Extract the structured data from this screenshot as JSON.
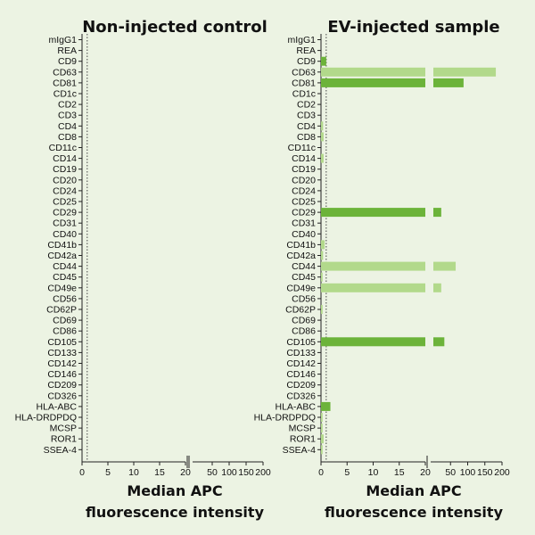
{
  "chart_data": [
    {
      "type": "bar",
      "orientation": "horizontal",
      "title": "Non-injected control",
      "xlabel": [
        "Median APC",
        "fluorescence intensity"
      ],
      "x_axis": {
        "broken": true,
        "segments": [
          {
            "range": [
              0,
              20
            ],
            "ticks": [
              "0",
              "5",
              "10",
              "15",
              "20"
            ]
          },
          {
            "range": [
              20,
              200
            ],
            "ticks": [
              "50",
              "100",
              "150",
              "200"
            ]
          }
        ],
        "reference_line": 1
      },
      "categories": [
        "mIgG1",
        "REA",
        "CD9",
        "CD63",
        "CD81",
        "CD1c",
        "CD2",
        "CD3",
        "CD4",
        "CD8",
        "CD11c",
        "CD14",
        "CD19",
        "CD20",
        "CD24",
        "CD25",
        "CD29",
        "CD31",
        "CD40",
        "CD41b",
        "CD42a",
        "CD44",
        "CD45",
        "CD49e",
        "CD56",
        "CD62P",
        "CD69",
        "CD86",
        "CD105",
        "CD133",
        "CD142",
        "CD146",
        "CD209",
        "CD326",
        "HLA-ABC",
        "HLA-DRDPDQ",
        "MCSP",
        "ROR1",
        "SSEA-4"
      ],
      "values": [
        0,
        0,
        0,
        0,
        0,
        0,
        0,
        0,
        0,
        0,
        0,
        0,
        0,
        0,
        0,
        0,
        0,
        0,
        0,
        0,
        0,
        0,
        0,
        0,
        0,
        0,
        0,
        0,
        0,
        0,
        0,
        0,
        0,
        0,
        0,
        0,
        0,
        0,
        0
      ],
      "shades": [
        "light",
        "light",
        "dark",
        "light",
        "dark",
        "light",
        "light",
        "light",
        "light",
        "light",
        "light",
        "light",
        "light",
        "light",
        "light",
        "light",
        "dark",
        "light",
        "light",
        "light",
        "light",
        "light",
        "light",
        "light",
        "light",
        "light",
        "light",
        "light",
        "dark",
        "light",
        "light",
        "light",
        "light",
        "light",
        "dark",
        "light",
        "light",
        "light",
        "light"
      ],
      "colors": {
        "dark": "#6cb33a",
        "light": "#b2d98b"
      }
    },
    {
      "type": "bar",
      "orientation": "horizontal",
      "title": "EV-injected sample",
      "xlabel": [
        "Median APC",
        "fluorescence intensity"
      ],
      "x_axis": {
        "broken": true,
        "segments": [
          {
            "range": [
              0,
              20
            ],
            "ticks": [
              "0",
              "5",
              "10",
              "15",
              "20"
            ]
          },
          {
            "range": [
              20,
              200
            ],
            "ticks": [
              "50",
              "100",
              "150",
              "200"
            ]
          }
        ],
        "reference_line": 1
      },
      "categories": [
        "mIgG1",
        "REA",
        "CD9",
        "CD63",
        "CD81",
        "CD1c",
        "CD2",
        "CD3",
        "CD4",
        "CD8",
        "CD11c",
        "CD14",
        "CD19",
        "CD20",
        "CD24",
        "CD25",
        "CD29",
        "CD31",
        "CD40",
        "CD41b",
        "CD42a",
        "CD44",
        "CD45",
        "CD49e",
        "CD56",
        "CD62P",
        "CD69",
        "CD86",
        "CD105",
        "CD133",
        "CD142",
        "CD146",
        "CD209",
        "CD326",
        "HLA-ABC",
        "HLA-DRDPDQ",
        "MCSP",
        "ROR1",
        "SSEA-4"
      ],
      "values": [
        0,
        0,
        1.0,
        182,
        88,
        0,
        0,
        0,
        0.4,
        0.5,
        0,
        0.5,
        0,
        0,
        0,
        0,
        23,
        0,
        0,
        0.7,
        0.4,
        65,
        0.3,
        23,
        0,
        0.3,
        0,
        0,
        32,
        0,
        0,
        0,
        0,
        0,
        1.8,
        0.3,
        0.3,
        0.5,
        0.3
      ],
      "shades": [
        "light",
        "light",
        "dark",
        "light",
        "dark",
        "light",
        "light",
        "light",
        "light",
        "light",
        "light",
        "light",
        "light",
        "light",
        "light",
        "light",
        "dark",
        "light",
        "light",
        "light",
        "light",
        "light",
        "light",
        "light",
        "light",
        "light",
        "light",
        "light",
        "dark",
        "light",
        "light",
        "light",
        "light",
        "light",
        "dark",
        "light",
        "light",
        "light",
        "light"
      ],
      "colors": {
        "dark": "#6cb33a",
        "light": "#b2d98b"
      }
    }
  ]
}
